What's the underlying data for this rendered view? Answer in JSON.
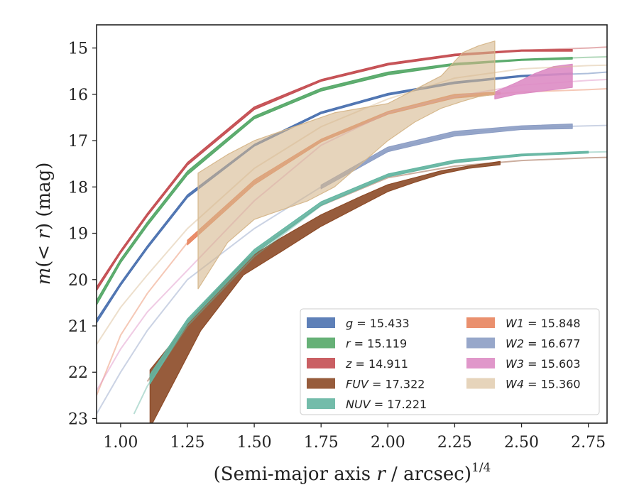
{
  "chart_data": {
    "type": "line",
    "xlabel": "(Semi-major axis r / arcsec)^1/4",
    "ylabel": "m(< r) (mag)",
    "xlim": [
      0.91,
      2.82
    ],
    "ylim": [
      23.1,
      14.5
    ],
    "y_inverted": true,
    "grid": false,
    "legend_placement": "lower-right",
    "x_ticks": [
      "1.00",
      "1.25",
      "1.50",
      "1.75",
      "2.00",
      "2.25",
      "2.50",
      "2.75"
    ],
    "x_tick_values": [
      1.0,
      1.25,
      1.5,
      1.75,
      2.0,
      2.25,
      2.5,
      2.75
    ],
    "y_ticks": [
      "15",
      "16",
      "17",
      "18",
      "19",
      "20",
      "21",
      "22",
      "23"
    ],
    "y_tick_values": [
      15,
      16,
      17,
      18,
      19,
      20,
      21,
      22,
      23
    ],
    "series": [
      {
        "name": "g",
        "legend_value": "15.433",
        "color": "#4c72b0",
        "model_x": [
          0.91,
          1.0,
          1.1,
          1.25,
          1.5,
          1.75,
          2.0,
          2.25,
          2.5,
          2.75,
          2.82
        ],
        "model_y": [
          20.9,
          20.1,
          19.3,
          18.2,
          17.1,
          16.4,
          16.0,
          15.75,
          15.6,
          15.55,
          15.52
        ],
        "x": [
          0.91,
          1.0,
          1.1,
          1.25,
          1.5,
          1.75,
          2.0,
          2.25,
          2.5,
          2.69
        ],
        "y_upper": [
          20.86,
          20.07,
          19.27,
          18.17,
          17.08,
          16.38,
          15.98,
          15.73,
          15.59,
          15.54
        ],
        "y_lower": [
          20.94,
          20.13,
          19.33,
          18.23,
          17.12,
          16.42,
          16.02,
          15.77,
          15.62,
          15.57
        ]
      },
      {
        "name": "r",
        "legend_value": "15.119",
        "color": "#55a868",
        "model_x": [
          0.91,
          1.0,
          1.1,
          1.25,
          1.5,
          1.75,
          2.0,
          2.25,
          2.5,
          2.75,
          2.82
        ],
        "model_y": [
          20.5,
          19.6,
          18.8,
          17.7,
          16.5,
          15.9,
          15.55,
          15.35,
          15.25,
          15.2,
          15.19
        ],
        "x": [
          0.91,
          1.0,
          1.1,
          1.25,
          1.5,
          1.75,
          2.0,
          2.25,
          2.5,
          2.69
        ],
        "y_upper": [
          20.45,
          19.56,
          18.76,
          17.66,
          16.47,
          15.87,
          15.52,
          15.33,
          15.24,
          15.2
        ],
        "y_lower": [
          20.55,
          19.64,
          18.84,
          17.74,
          16.53,
          15.93,
          15.58,
          15.37,
          15.27,
          15.24
        ]
      },
      {
        "name": "z",
        "legend_value": "14.911",
        "color": "#c44e52",
        "model_x": [
          0.91,
          1.0,
          1.1,
          1.25,
          1.5,
          1.75,
          2.0,
          2.25,
          2.5,
          2.75,
          2.82
        ],
        "model_y": [
          20.2,
          19.4,
          18.6,
          17.5,
          16.3,
          15.7,
          15.35,
          15.15,
          15.05,
          15.0,
          14.98
        ],
        "x": [
          0.91,
          1.0,
          1.1,
          1.25,
          1.5,
          1.75,
          2.0,
          2.25,
          2.5,
          2.69
        ],
        "y_upper": [
          20.16,
          19.37,
          18.57,
          17.47,
          16.27,
          15.68,
          15.33,
          15.13,
          15.04,
          15.03
        ],
        "y_lower": [
          20.24,
          19.43,
          18.63,
          17.53,
          16.33,
          15.72,
          15.37,
          15.17,
          15.07,
          15.07
        ]
      },
      {
        "name": "FUV",
        "legend_value": "17.322",
        "color": "#8c4a27",
        "model_x": [
          1.1,
          1.25,
          1.5,
          1.75,
          2.0,
          2.25,
          2.5,
          2.75,
          2.82
        ],
        "model_y": [
          22.2,
          20.9,
          19.4,
          18.4,
          17.8,
          17.55,
          17.43,
          17.37,
          17.36
        ],
        "x": [
          1.11,
          1.3,
          1.46,
          1.6,
          1.75,
          1.9,
          2.0,
          2.1,
          2.2,
          2.3,
          2.42
        ],
        "y_upper": [
          21.95,
          20.6,
          19.6,
          19.1,
          18.6,
          18.2,
          17.95,
          17.8,
          17.65,
          17.55,
          17.45
        ],
        "y_lower": [
          23.2,
          21.1,
          19.9,
          19.4,
          18.85,
          18.4,
          18.1,
          17.9,
          17.72,
          17.6,
          17.52
        ]
      },
      {
        "name": "NUV",
        "legend_value": "17.221",
        "color": "#64b5a1",
        "model_x": [
          1.05,
          1.1,
          1.25,
          1.5,
          1.75,
          2.0,
          2.25,
          2.5,
          2.75,
          2.82
        ],
        "model_y": [
          22.9,
          22.3,
          21.0,
          19.5,
          18.4,
          17.75,
          17.45,
          17.3,
          17.25,
          17.24
        ],
        "x": [
          1.11,
          1.25,
          1.5,
          1.75,
          2.0,
          2.25,
          2.5,
          2.75
        ],
        "y_upper": [
          22.05,
          20.85,
          19.35,
          18.32,
          17.72,
          17.42,
          17.29,
          17.23
        ],
        "y_lower": [
          22.25,
          20.95,
          19.45,
          18.4,
          17.78,
          17.48,
          17.33,
          17.27
        ]
      },
      {
        "name": "W1",
        "legend_value": "15.848",
        "color": "#e8845e",
        "model_x": [
          0.91,
          1.0,
          1.1,
          1.25,
          1.5,
          1.75,
          2.0,
          2.25,
          2.5,
          2.75,
          2.82
        ],
        "model_y": [
          22.5,
          21.2,
          20.3,
          19.2,
          17.9,
          17.0,
          16.4,
          16.05,
          15.95,
          15.9,
          15.88
        ],
        "x": [
          1.25,
          1.5,
          1.75,
          2.0,
          2.25,
          2.42
        ],
        "y_upper": [
          19.15,
          17.85,
          16.97,
          16.37,
          16.0,
          15.95
        ],
        "y_lower": [
          19.25,
          17.95,
          17.03,
          16.43,
          16.08,
          16.0
        ]
      },
      {
        "name": "W2",
        "legend_value": "16.677",
        "color": "#8c9dc4",
        "model_x": [
          0.91,
          1.0,
          1.1,
          1.25,
          1.5,
          1.75,
          2.0,
          2.25,
          2.5,
          2.75,
          2.82
        ],
        "model_y": [
          22.9,
          22.0,
          21.1,
          20.0,
          18.9,
          18.0,
          17.2,
          16.85,
          16.72,
          16.68,
          16.67
        ],
        "x": [
          1.75,
          2.0,
          2.25,
          2.5,
          2.69
        ],
        "y_upper": [
          17.96,
          17.14,
          16.8,
          16.68,
          16.64
        ],
        "y_lower": [
          18.04,
          17.24,
          16.9,
          16.76,
          16.74
        ]
      },
      {
        "name": "W3",
        "legend_value": "15.603",
        "color": "#dd8cc4",
        "model_x": [
          0.91,
          1.0,
          1.1,
          1.25,
          1.5,
          1.75,
          2.0,
          2.25,
          2.5,
          2.75,
          2.82
        ],
        "model_y": [
          22.4,
          21.5,
          20.7,
          19.8,
          18.3,
          17.1,
          16.4,
          16.05,
          15.8,
          15.7,
          15.68
        ],
        "x": [
          2.4,
          2.48,
          2.55,
          2.62,
          2.69
        ],
        "y_upper": [
          15.95,
          15.75,
          15.55,
          15.4,
          15.35
        ],
        "y_lower": [
          16.1,
          16.0,
          15.95,
          15.9,
          15.85
        ]
      },
      {
        "name": "W4",
        "legend_value": "15.360",
        "color": "#d6b88d",
        "model_x": [
          0.91,
          1.0,
          1.1,
          1.25,
          1.5,
          1.75,
          2.0,
          2.25,
          2.5,
          2.75,
          2.82
        ],
        "model_y": [
          21.4,
          20.6,
          19.9,
          18.9,
          17.6,
          16.7,
          16.1,
          15.65,
          15.45,
          15.38,
          15.37
        ],
        "x": [
          1.29,
          1.4,
          1.5,
          1.6,
          1.7,
          1.8,
          1.9,
          2.0,
          2.1,
          2.2,
          2.28,
          2.34,
          2.4
        ],
        "y_upper": [
          17.7,
          17.3,
          17.0,
          16.8,
          16.6,
          16.4,
          16.3,
          16.2,
          15.9,
          15.6,
          15.1,
          14.95,
          14.85
        ],
        "y_lower": [
          20.2,
          19.2,
          18.7,
          18.5,
          18.3,
          18.0,
          17.5,
          17.0,
          16.6,
          16.3,
          16.15,
          16.05,
          16.0
        ]
      }
    ]
  }
}
